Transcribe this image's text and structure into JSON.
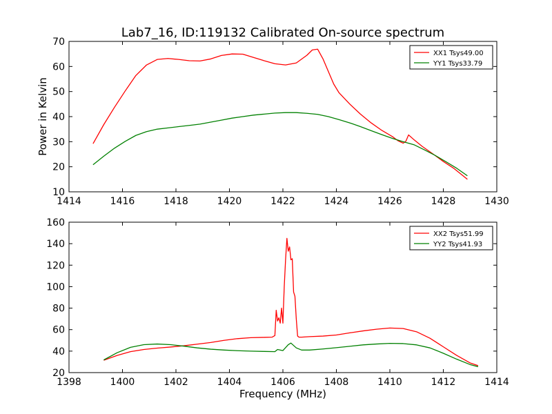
{
  "figure": {
    "title": "Lab7_16, ID:119132 Calibrated On-source spectrum"
  },
  "chart_data": [
    {
      "type": "line",
      "ylabel": "Power in Kelvin",
      "xlabel": "",
      "xlim": [
        1414,
        1430
      ],
      "ylim": [
        10,
        70
      ],
      "xticks": [
        1414,
        1416,
        1418,
        1420,
        1422,
        1424,
        1426,
        1428,
        1430
      ],
      "yticks": [
        10,
        20,
        30,
        40,
        50,
        60,
        70
      ],
      "grid": false,
      "legend": "top-right",
      "series": [
        {
          "name": "XX1 Tsys49.00",
          "color": "#ff0000",
          "x": [
            1414.9,
            1415.3,
            1415.7,
            1416.1,
            1416.5,
            1416.9,
            1417.3,
            1417.7,
            1418.1,
            1418.5,
            1418.9,
            1419.3,
            1419.7,
            1420.1,
            1420.5,
            1420.9,
            1421.3,
            1421.7,
            1422.1,
            1422.5,
            1422.9,
            1423.1,
            1423.3,
            1423.5,
            1423.7,
            1423.9,
            1424.1,
            1424.5,
            1424.9,
            1425.3,
            1425.7,
            1426.1,
            1426.3,
            1426.5,
            1426.6,
            1426.7,
            1426.9,
            1427.2,
            1427.6,
            1428.0,
            1428.4,
            1428.9
          ],
          "y": [
            29.2,
            36.8,
            43.7,
            50.2,
            56.4,
            60.6,
            62.8,
            63.2,
            62.8,
            62.3,
            62.2,
            63.0,
            64.4,
            65.0,
            64.9,
            63.6,
            62.3,
            61.1,
            60.6,
            61.4,
            64.5,
            66.6,
            66.9,
            63.0,
            58.0,
            53.0,
            49.5,
            45.0,
            41.0,
            37.5,
            34.5,
            32.0,
            30.4,
            29.4,
            30.2,
            32.7,
            30.8,
            28.2,
            25.2,
            22.1,
            19.3,
            15.0
          ]
        },
        {
          "name": "YY1 Tsys33.79",
          "color": "#008000",
          "x": [
            1414.9,
            1415.3,
            1415.7,
            1416.1,
            1416.5,
            1416.9,
            1417.3,
            1417.7,
            1418.1,
            1418.5,
            1418.9,
            1419.3,
            1419.7,
            1420.1,
            1420.5,
            1420.9,
            1421.3,
            1421.7,
            1422.1,
            1422.5,
            1422.9,
            1423.3,
            1423.7,
            1424.1,
            1424.5,
            1424.9,
            1425.3,
            1425.7,
            1426.1,
            1426.5,
            1426.9,
            1427.3,
            1427.7,
            1428.1,
            1428.5,
            1428.9
          ],
          "y": [
            20.8,
            24.2,
            27.4,
            30.1,
            32.5,
            34.0,
            35.0,
            35.5,
            36.0,
            36.5,
            37.0,
            37.8,
            38.6,
            39.4,
            40.0,
            40.6,
            41.0,
            41.4,
            41.6,
            41.6,
            41.3,
            40.9,
            40.0,
            38.8,
            37.5,
            36.0,
            34.4,
            32.8,
            31.3,
            30.0,
            28.8,
            26.7,
            24.5,
            22.0,
            19.4,
            16.4
          ]
        }
      ]
    },
    {
      "type": "line",
      "ylabel": "",
      "xlabel": "Frequency (MHz)",
      "xlim": [
        1398,
        1414
      ],
      "ylim": [
        20,
        160
      ],
      "xticks": [
        1398,
        1400,
        1402,
        1404,
        1406,
        1408,
        1410,
        1412,
        1414
      ],
      "yticks": [
        20,
        40,
        60,
        80,
        100,
        120,
        140,
        160
      ],
      "grid": false,
      "legend": "top-right",
      "series": [
        {
          "name": "XX2 Tsys51.99",
          "color": "#ff0000",
          "x": [
            1399.3,
            1399.8,
            1400.3,
            1400.8,
            1401.3,
            1401.8,
            1402.3,
            1402.8,
            1403.3,
            1403.8,
            1404.3,
            1404.8,
            1405.3,
            1405.6,
            1405.7,
            1405.75,
            1405.8,
            1405.85,
            1405.9,
            1405.95,
            1406.0,
            1406.05,
            1406.1,
            1406.15,
            1406.2,
            1406.25,
            1406.3,
            1406.35,
            1406.4,
            1406.45,
            1406.5,
            1406.55,
            1406.6,
            1406.7,
            1407.0,
            1407.5,
            1408.0,
            1408.5,
            1409.0,
            1409.5,
            1410.0,
            1410.5,
            1411.0,
            1411.5,
            1412.0,
            1412.5,
            1413.0,
            1413.3
          ],
          "y": [
            31.5,
            36.0,
            39.5,
            41.5,
            42.8,
            43.8,
            45.0,
            46.5,
            48.0,
            50.0,
            51.6,
            52.5,
            52.8,
            53.0,
            54.5,
            78.0,
            68.0,
            71.0,
            66.0,
            80.0,
            66.0,
            100.0,
            125.0,
            145.0,
            133.0,
            137.0,
            125.0,
            126.0,
            95.0,
            91.0,
            70.0,
            54.0,
            53.0,
            53.0,
            53.5,
            54.0,
            55.0,
            57.0,
            58.8,
            60.4,
            61.5,
            61.0,
            58.0,
            52.0,
            44.0,
            36.0,
            29.0,
            26.5
          ]
        },
        {
          "name": "YY2 Tsys41.93",
          "color": "#008000",
          "x": [
            1399.3,
            1399.8,
            1400.3,
            1400.8,
            1401.3,
            1401.8,
            1402.3,
            1402.8,
            1403.3,
            1403.8,
            1404.3,
            1404.8,
            1405.3,
            1405.7,
            1405.8,
            1406.0,
            1406.2,
            1406.3,
            1406.5,
            1406.7,
            1407.0,
            1407.5,
            1408.0,
            1408.5,
            1409.0,
            1409.5,
            1410.0,
            1410.5,
            1411.0,
            1411.5,
            1412.0,
            1412.5,
            1413.0,
            1413.3
          ],
          "y": [
            31.8,
            38.5,
            43.5,
            46.0,
            46.6,
            46.0,
            44.6,
            43.0,
            41.8,
            41.0,
            40.4,
            40.0,
            39.7,
            39.5,
            41.5,
            40.5,
            46.0,
            47.5,
            43.0,
            41.0,
            41.0,
            42.0,
            43.2,
            44.5,
            45.8,
            46.6,
            47.2,
            47.0,
            45.8,
            43.0,
            38.0,
            32.5,
            27.5,
            25.5
          ]
        }
      ]
    }
  ]
}
